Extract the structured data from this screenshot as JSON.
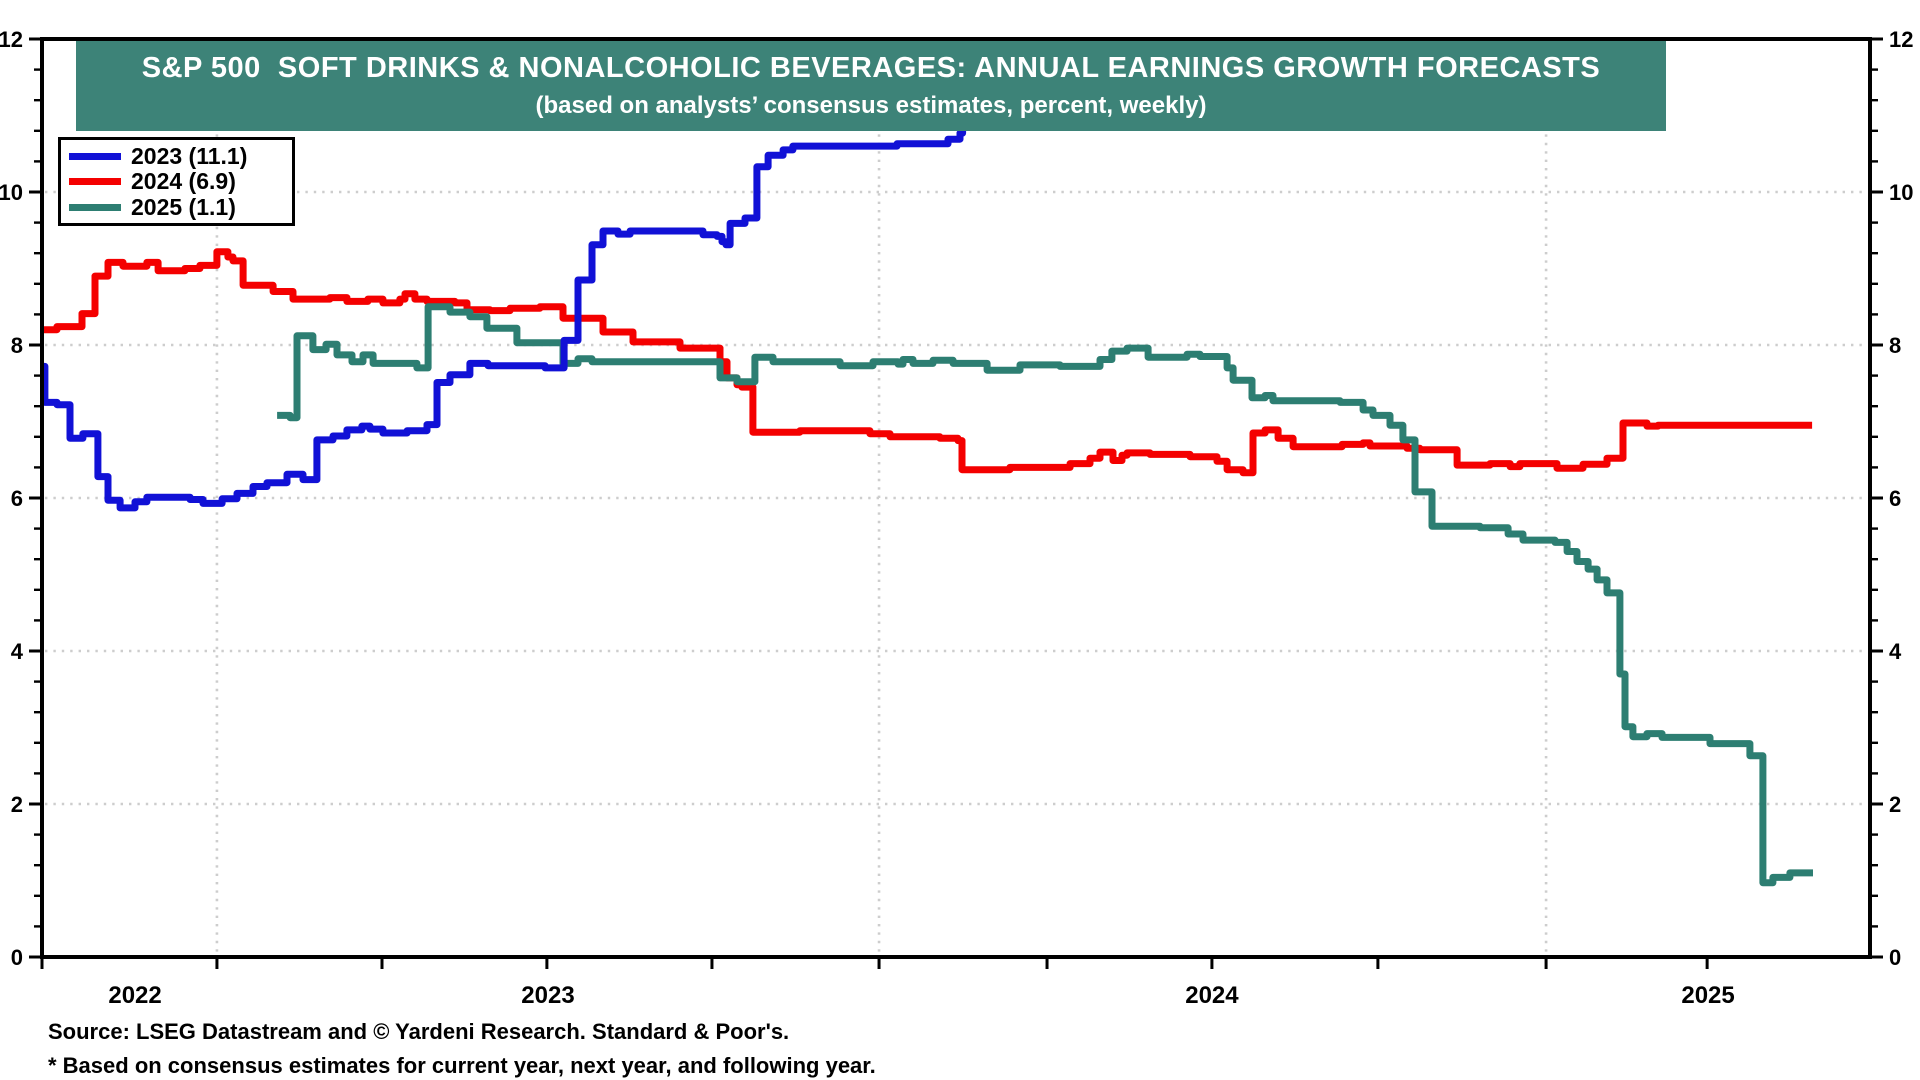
{
  "title": {
    "line1": "S&P 500  SOFT DRINKS & NONALCOHOLIC BEVERAGES: ANNUAL EARNINGS GROWTH FORECASTS",
    "line2": "(based on analysts’ consensus estimates, percent, weekly)"
  },
  "legend": {
    "items": [
      {
        "label": "2023 (11.1)",
        "color": "blue"
      },
      {
        "label": "2024 (6.9)",
        "color": "red"
      },
      {
        "label": "2025 (1.1)",
        "color": "teal"
      }
    ]
  },
  "footer": {
    "source": "Source: LSEG Datastream and © Yardeni Research. Standard & Poor's.",
    "note": "* Based on consensus estimates for current year, next year, and following year."
  },
  "colors": {
    "banner": "#3D8378",
    "blue": "#1111D6",
    "red": "#F40000",
    "teal": "#2D7E72",
    "grid": "#CDCDCD",
    "axis": "#000000"
  },
  "chart_data": {
    "type": "line",
    "title": "S&P 500 Soft Drinks & Nonalcoholic Beverages: Annual Earnings Growth Forecasts",
    "subtitle": "based on analysts’ consensus estimates, percent, weekly",
    "ylim": [
      0,
      12
    ],
    "y_ticks": [
      0,
      2,
      4,
      6,
      8,
      10,
      12
    ],
    "y_minor_step": 0.4,
    "y_gridlines": [
      2,
      4,
      6,
      8,
      10
    ],
    "x_unit": "fraction of plot width (weekly time axis, late 2021 through early 2025)",
    "x_ticks": [
      0.0,
      0.0957,
      0.186,
      0.2762,
      0.3665,
      0.4579,
      0.5498,
      0.64,
      0.7308,
      0.8228,
      0.9109
    ],
    "x_gridlines": [
      0.0957,
      0.4579,
      0.8228
    ],
    "x_labels": [
      {
        "label": "2022",
        "t": 0.0509
      },
      {
        "label": "2023",
        "t": 0.2768
      },
      {
        "label": "2024",
        "t": 0.64
      },
      {
        "label": "2025",
        "t": 0.9114
      }
    ],
    "legend_position": "top-left",
    "grid": "dotted",
    "series": [
      {
        "name": "2023",
        "color": "blue",
        "final_value": 11.1,
        "end_t": 0.504,
        "points": [
          [
            0.0,
            7.72
          ],
          [
            0.0016,
            7.25
          ],
          [
            0.0082,
            7.22
          ],
          [
            0.0153,
            6.78
          ],
          [
            0.0224,
            6.84
          ],
          [
            0.0306,
            6.28
          ],
          [
            0.0361,
            5.97
          ],
          [
            0.0427,
            5.87
          ],
          [
            0.0509,
            5.95
          ],
          [
            0.0574,
            6.01
          ],
          [
            0.081,
            5.98
          ],
          [
            0.0881,
            5.93
          ],
          [
            0.0985,
            5.99
          ],
          [
            0.1067,
            6.06
          ],
          [
            0.1154,
            6.15
          ],
          [
            0.1231,
            6.2
          ],
          [
            0.134,
            6.31
          ],
          [
            0.1428,
            6.24
          ],
          [
            0.1504,
            6.76
          ],
          [
            0.1592,
            6.81
          ],
          [
            0.1668,
            6.89
          ],
          [
            0.175,
            6.94
          ],
          [
            0.1794,
            6.9
          ],
          [
            0.1865,
            6.85
          ],
          [
            0.1997,
            6.88
          ],
          [
            0.2106,
            6.96
          ],
          [
            0.2161,
            7.51
          ],
          [
            0.2232,
            7.61
          ],
          [
            0.2341,
            7.76
          ],
          [
            0.244,
            7.73
          ],
          [
            0.2752,
            7.7
          ],
          [
            0.2856,
            8.06
          ],
          [
            0.2932,
            8.85
          ],
          [
            0.3009,
            9.31
          ],
          [
            0.3069,
            9.49
          ],
          [
            0.3151,
            9.45
          ],
          [
            0.3217,
            9.49
          ],
          [
            0.3616,
            9.44
          ],
          [
            0.3693,
            9.42
          ],
          [
            0.372,
            9.35
          ],
          [
            0.3742,
            9.31
          ],
          [
            0.3764,
            9.59
          ],
          [
            0.3846,
            9.66
          ],
          [
            0.3911,
            10.33
          ],
          [
            0.3972,
            10.48
          ],
          [
            0.4054,
            10.55
          ],
          [
            0.4108,
            10.6
          ],
          [
            0.4677,
            10.63
          ],
          [
            0.4956,
            10.69
          ],
          [
            0.5022,
            10.77
          ],
          [
            0.5036,
            11.1
          ]
        ]
      },
      {
        "name": "2024",
        "color": "red",
        "final_value": 6.9,
        "end_t": 0.9683,
        "points": [
          [
            0.0,
            8.2
          ],
          [
            0.0082,
            8.24
          ],
          [
            0.0219,
            8.41
          ],
          [
            0.029,
            8.9
          ],
          [
            0.0361,
            9.08
          ],
          [
            0.0443,
            9.03
          ],
          [
            0.0574,
            9.08
          ],
          [
            0.0635,
            8.97
          ],
          [
            0.0782,
            9.0
          ],
          [
            0.0864,
            9.04
          ],
          [
            0.0957,
            9.22
          ],
          [
            0.1017,
            9.15
          ],
          [
            0.1045,
            9.1
          ],
          [
            0.11,
            8.78
          ],
          [
            0.1264,
            8.7
          ],
          [
            0.1373,
            8.6
          ],
          [
            0.1575,
            8.62
          ],
          [
            0.1668,
            8.57
          ],
          [
            0.1783,
            8.6
          ],
          [
            0.1865,
            8.55
          ],
          [
            0.1958,
            8.6
          ],
          [
            0.1986,
            8.67
          ],
          [
            0.204,
            8.6
          ],
          [
            0.2106,
            8.57
          ],
          [
            0.2259,
            8.55
          ],
          [
            0.2325,
            8.46
          ],
          [
            0.2451,
            8.45
          ],
          [
            0.256,
            8.48
          ],
          [
            0.2724,
            8.5
          ],
          [
            0.285,
            8.35
          ],
          [
            0.3069,
            8.17
          ],
          [
            0.3233,
            8.04
          ],
          [
            0.349,
            7.96
          ],
          [
            0.3709,
            7.78
          ],
          [
            0.3747,
            7.57
          ],
          [
            0.3802,
            7.48
          ],
          [
            0.3829,
            7.45
          ],
          [
            0.3889,
            6.86
          ],
          [
            0.4146,
            6.88
          ],
          [
            0.4529,
            6.84
          ],
          [
            0.4639,
            6.8
          ],
          [
            0.4912,
            6.78
          ],
          [
            0.5011,
            6.75
          ],
          [
            0.5033,
            6.37
          ],
          [
            0.5295,
            6.4
          ],
          [
            0.5624,
            6.45
          ],
          [
            0.5733,
            6.52
          ],
          [
            0.5788,
            6.6
          ],
          [
            0.5859,
            6.49
          ],
          [
            0.5908,
            6.56
          ],
          [
            0.5936,
            6.59
          ],
          [
            0.6061,
            6.57
          ],
          [
            0.628,
            6.54
          ],
          [
            0.6428,
            6.48
          ],
          [
            0.6483,
            6.37
          ],
          [
            0.657,
            6.33
          ],
          [
            0.6625,
            6.85
          ],
          [
            0.6691,
            6.89
          ],
          [
            0.6762,
            6.78
          ],
          [
            0.6844,
            6.67
          ],
          [
            0.7112,
            6.7
          ],
          [
            0.7227,
            6.72
          ],
          [
            0.7265,
            6.68
          ],
          [
            0.7467,
            6.65
          ],
          [
            0.7538,
            6.63
          ],
          [
            0.7741,
            6.43
          ],
          [
            0.7921,
            6.45
          ],
          [
            0.8031,
            6.41
          ],
          [
            0.8085,
            6.45
          ],
          [
            0.8288,
            6.39
          ],
          [
            0.843,
            6.44
          ],
          [
            0.8561,
            6.52
          ],
          [
            0.8649,
            6.98
          ],
          [
            0.878,
            6.94
          ],
          [
            0.884,
            6.95
          ]
        ]
      },
      {
        "name": "2025",
        "color": "teal",
        "final_value": 1.1,
        "end_t": 0.9688,
        "points": [
          [
            0.1286,
            7.08
          ],
          [
            0.1357,
            7.05
          ],
          [
            0.1395,
            8.12
          ],
          [
            0.1482,
            7.94
          ],
          [
            0.1554,
            8.01
          ],
          [
            0.1614,
            7.87
          ],
          [
            0.1696,
            7.78
          ],
          [
            0.1756,
            7.87
          ],
          [
            0.1811,
            7.76
          ],
          [
            0.2051,
            7.7
          ],
          [
            0.2112,
            8.5
          ],
          [
            0.2232,
            8.43
          ],
          [
            0.2341,
            8.37
          ],
          [
            0.2434,
            8.22
          ],
          [
            0.2598,
            8.03
          ],
          [
            0.285,
            7.76
          ],
          [
            0.2932,
            7.82
          ],
          [
            0.3009,
            7.78
          ],
          [
            0.3709,
            7.57
          ],
          [
            0.3802,
            7.52
          ],
          [
            0.39,
            7.84
          ],
          [
            0.3999,
            7.78
          ],
          [
            0.4366,
            7.73
          ],
          [
            0.4546,
            7.78
          ],
          [
            0.4683,
            7.75
          ],
          [
            0.471,
            7.81
          ],
          [
            0.4765,
            7.76
          ],
          [
            0.4874,
            7.8
          ],
          [
            0.4984,
            7.76
          ],
          [
            0.517,
            7.67
          ],
          [
            0.535,
            7.74
          ],
          [
            0.5569,
            7.72
          ],
          [
            0.5788,
            7.81
          ],
          [
            0.5853,
            7.92
          ],
          [
            0.5936,
            7.96
          ],
          [
            0.6051,
            7.84
          ],
          [
            0.6264,
            7.88
          ],
          [
            0.6335,
            7.85
          ],
          [
            0.6483,
            7.7
          ],
          [
            0.6516,
            7.54
          ],
          [
            0.6619,
            7.31
          ],
          [
            0.6691,
            7.34
          ],
          [
            0.6734,
            7.27
          ],
          [
            0.7101,
            7.25
          ],
          [
            0.7227,
            7.15
          ],
          [
            0.7281,
            7.08
          ],
          [
            0.7374,
            6.95
          ],
          [
            0.7445,
            6.76
          ],
          [
            0.7511,
            6.08
          ],
          [
            0.7604,
            5.63
          ],
          [
            0.7867,
            5.61
          ],
          [
            0.802,
            5.53
          ],
          [
            0.8102,
            5.45
          ],
          [
            0.8277,
            5.42
          ],
          [
            0.8343,
            5.3
          ],
          [
            0.8397,
            5.17
          ],
          [
            0.8458,
            5.07
          ],
          [
            0.8507,
            4.93
          ],
          [
            0.8561,
            4.76
          ],
          [
            0.8632,
            3.7
          ],
          [
            0.866,
            3.01
          ],
          [
            0.8703,
            2.88
          ],
          [
            0.878,
            2.92
          ],
          [
            0.8862,
            2.87
          ],
          [
            0.9125,
            2.79
          ],
          [
            0.9343,
            2.63
          ],
          [
            0.9414,
            0.97
          ],
          [
            0.9469,
            1.04
          ],
          [
            0.9562,
            1.1
          ]
        ]
      }
    ]
  }
}
